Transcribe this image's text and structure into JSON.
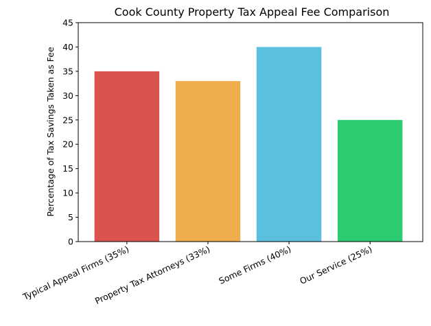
{
  "chart_data": {
    "type": "bar",
    "title": "Cook County Property Tax Appeal Fee Comparison",
    "xlabel": "",
    "ylabel": "Percentage of Tax Savings Taken as Fee",
    "categories": [
      "Typical Appeal Firms (35%)",
      "Property Tax Attorneys (33%)",
      "Some Firms (40%)",
      "Our Service (25%)"
    ],
    "values": [
      35,
      33,
      40,
      25
    ],
    "colors": [
      "#d9534f",
      "#f0ad4e",
      "#5bc0de",
      "#2ecc71"
    ],
    "ylim": [
      0,
      45
    ],
    "yticks": [
      0,
      5,
      10,
      15,
      20,
      25,
      30,
      35,
      40,
      45
    ],
    "grid": false,
    "legend": "none"
  }
}
